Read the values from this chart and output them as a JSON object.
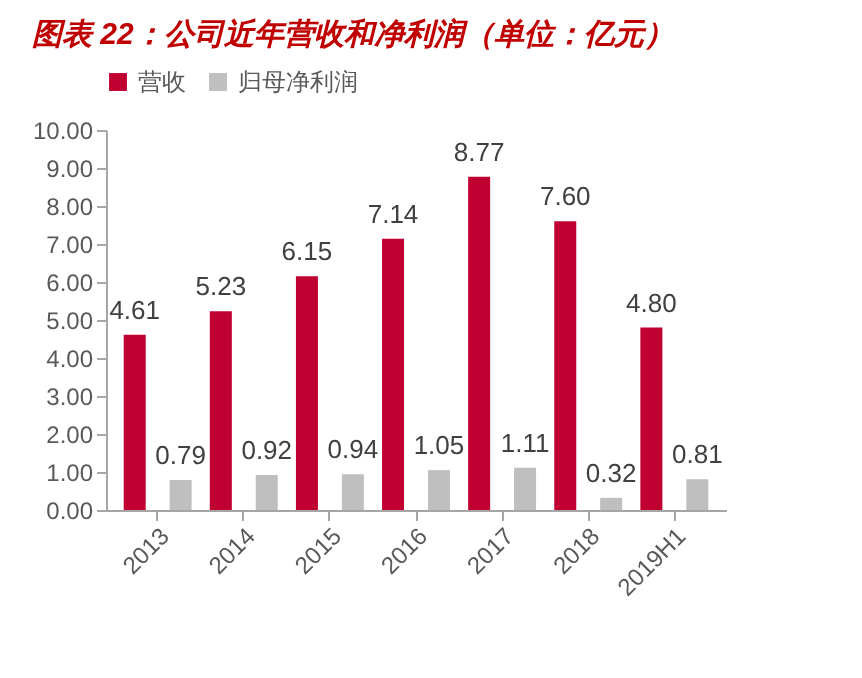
{
  "chart_data": {
    "type": "bar",
    "title": "图表 22：公司近年营收和净利润（单位：亿元）",
    "categories": [
      "2013",
      "2014",
      "2015",
      "2016",
      "2017",
      "2018",
      "2019H1"
    ],
    "series": [
      {
        "name": "营收",
        "color": "#c00030",
        "values": [
          4.61,
          5.23,
          6.15,
          7.14,
          8.77,
          7.6,
          4.8
        ],
        "value_labels": [
          "4.61",
          "5.23",
          "6.15",
          "7.14",
          "8.77",
          "7.60",
          "4.80"
        ]
      },
      {
        "name": "归母净利润",
        "color": "#bfbfbf",
        "values": [
          0.79,
          0.92,
          0.94,
          1.05,
          1.11,
          0.32,
          0.81
        ],
        "value_labels": [
          "0.79",
          "0.92",
          "0.94",
          "1.05",
          "1.11",
          "0.32",
          "0.81"
        ]
      }
    ],
    "ylim": [
      0,
      10
    ],
    "yticks": [
      {
        "value": 0,
        "label": "0.00"
      },
      {
        "value": 1,
        "label": "1.00"
      },
      {
        "value": 2,
        "label": "2.00"
      },
      {
        "value": 3,
        "label": "3.00"
      },
      {
        "value": 4,
        "label": "4.00"
      },
      {
        "value": 5,
        "label": "5.00"
      },
      {
        "value": 6,
        "label": "6.00"
      },
      {
        "value": 7,
        "label": "7.00"
      },
      {
        "value": 8,
        "label": "8.00"
      },
      {
        "value": 9,
        "label": "9.00"
      },
      {
        "value": 10,
        "label": "10.00"
      }
    ],
    "legend": "top",
    "grid": false
  }
}
